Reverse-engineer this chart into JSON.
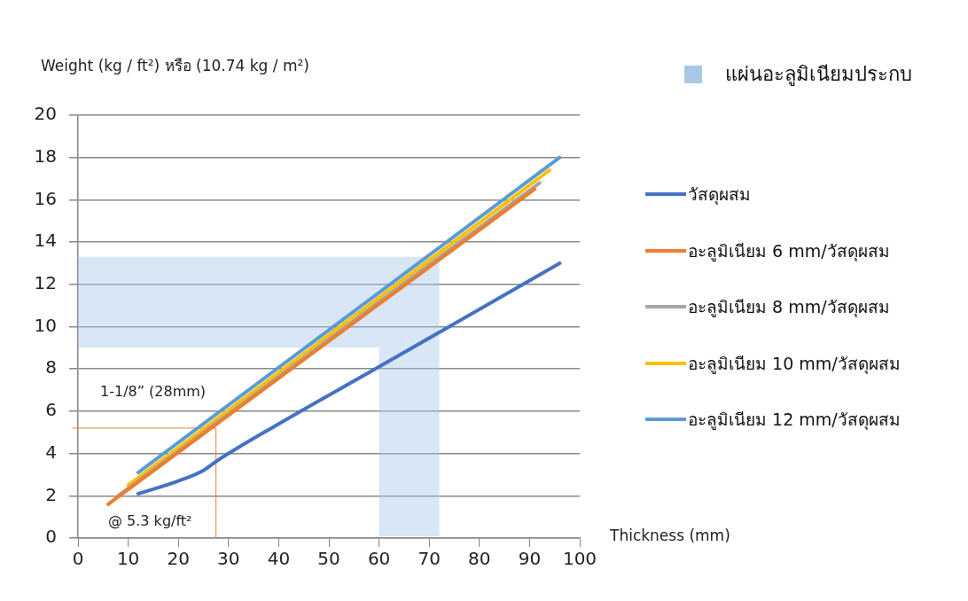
{
  "chart_data": {
    "type": "line",
    "xlabel": "Thickness (mm)",
    "ylabel": "Weight (kg / ft²) หรือ (10.74 kg / m²)",
    "xlim": [
      0,
      100
    ],
    "xticks": [
      0,
      10,
      20,
      30,
      40,
      50,
      60,
      70,
      80,
      90,
      100
    ],
    "ylim": [
      0,
      20
    ],
    "yticks": [
      0,
      2,
      4,
      6,
      8,
      10,
      12,
      14,
      16,
      18,
      20
    ],
    "grid": "y",
    "legend": "right",
    "marker": "none",
    "line_style": "solid",
    "series": [
      {
        "name": "วัสดุผสม",
        "color": "#4472c4",
        "x": [
          12,
          20,
          25,
          28,
          40,
          60,
          96
        ],
        "values": [
          2.1,
          2.7,
          3.2,
          3.7,
          5.4,
          8.1,
          13.0
        ]
      },
      {
        "name": "อะลูมิเนียม 6 mm/วัสดุผสม",
        "color": "#ed7d31",
        "x": [
          6,
          91
        ],
        "values": [
          1.6,
          16.5
        ]
      },
      {
        "name": "อะลูมิเนียม 8 mm/วัสดุผสม",
        "color": "#a5a5a5",
        "x": [
          8,
          92
        ],
        "values": [
          2.0,
          16.8
        ]
      },
      {
        "name": "อะลูมิเนียม 10 mm/วัสดุผสม",
        "color": "#ffc000",
        "x": [
          10,
          94
        ],
        "values": [
          2.5,
          17.4
        ]
      },
      {
        "name": "อะลูมิเนียม 12 mm/วัสดุผสม",
        "color": "#5b9bd5",
        "x": [
          12,
          96
        ],
        "values": [
          3.1,
          18.0
        ]
      }
    ],
    "bands": [
      {
        "axis": "y",
        "from": 9.0,
        "to": 13.3,
        "label": "แผ่นอะลูมิเนียมประกบ",
        "color": "#a9c8e8"
      },
      {
        "axis": "x",
        "from": 60,
        "to": 72,
        "color": "#a9c8e8"
      }
    ],
    "ref_lines": [
      {
        "axis": "y",
        "value": 5.2,
        "color": "#ed7d31"
      },
      {
        "axis": "x",
        "value": 27.5,
        "color": "#ed7d31"
      }
    ],
    "annotations": [
      "1-1/8” (28mm)",
      "@ 5.3 kg/ft²"
    ]
  }
}
